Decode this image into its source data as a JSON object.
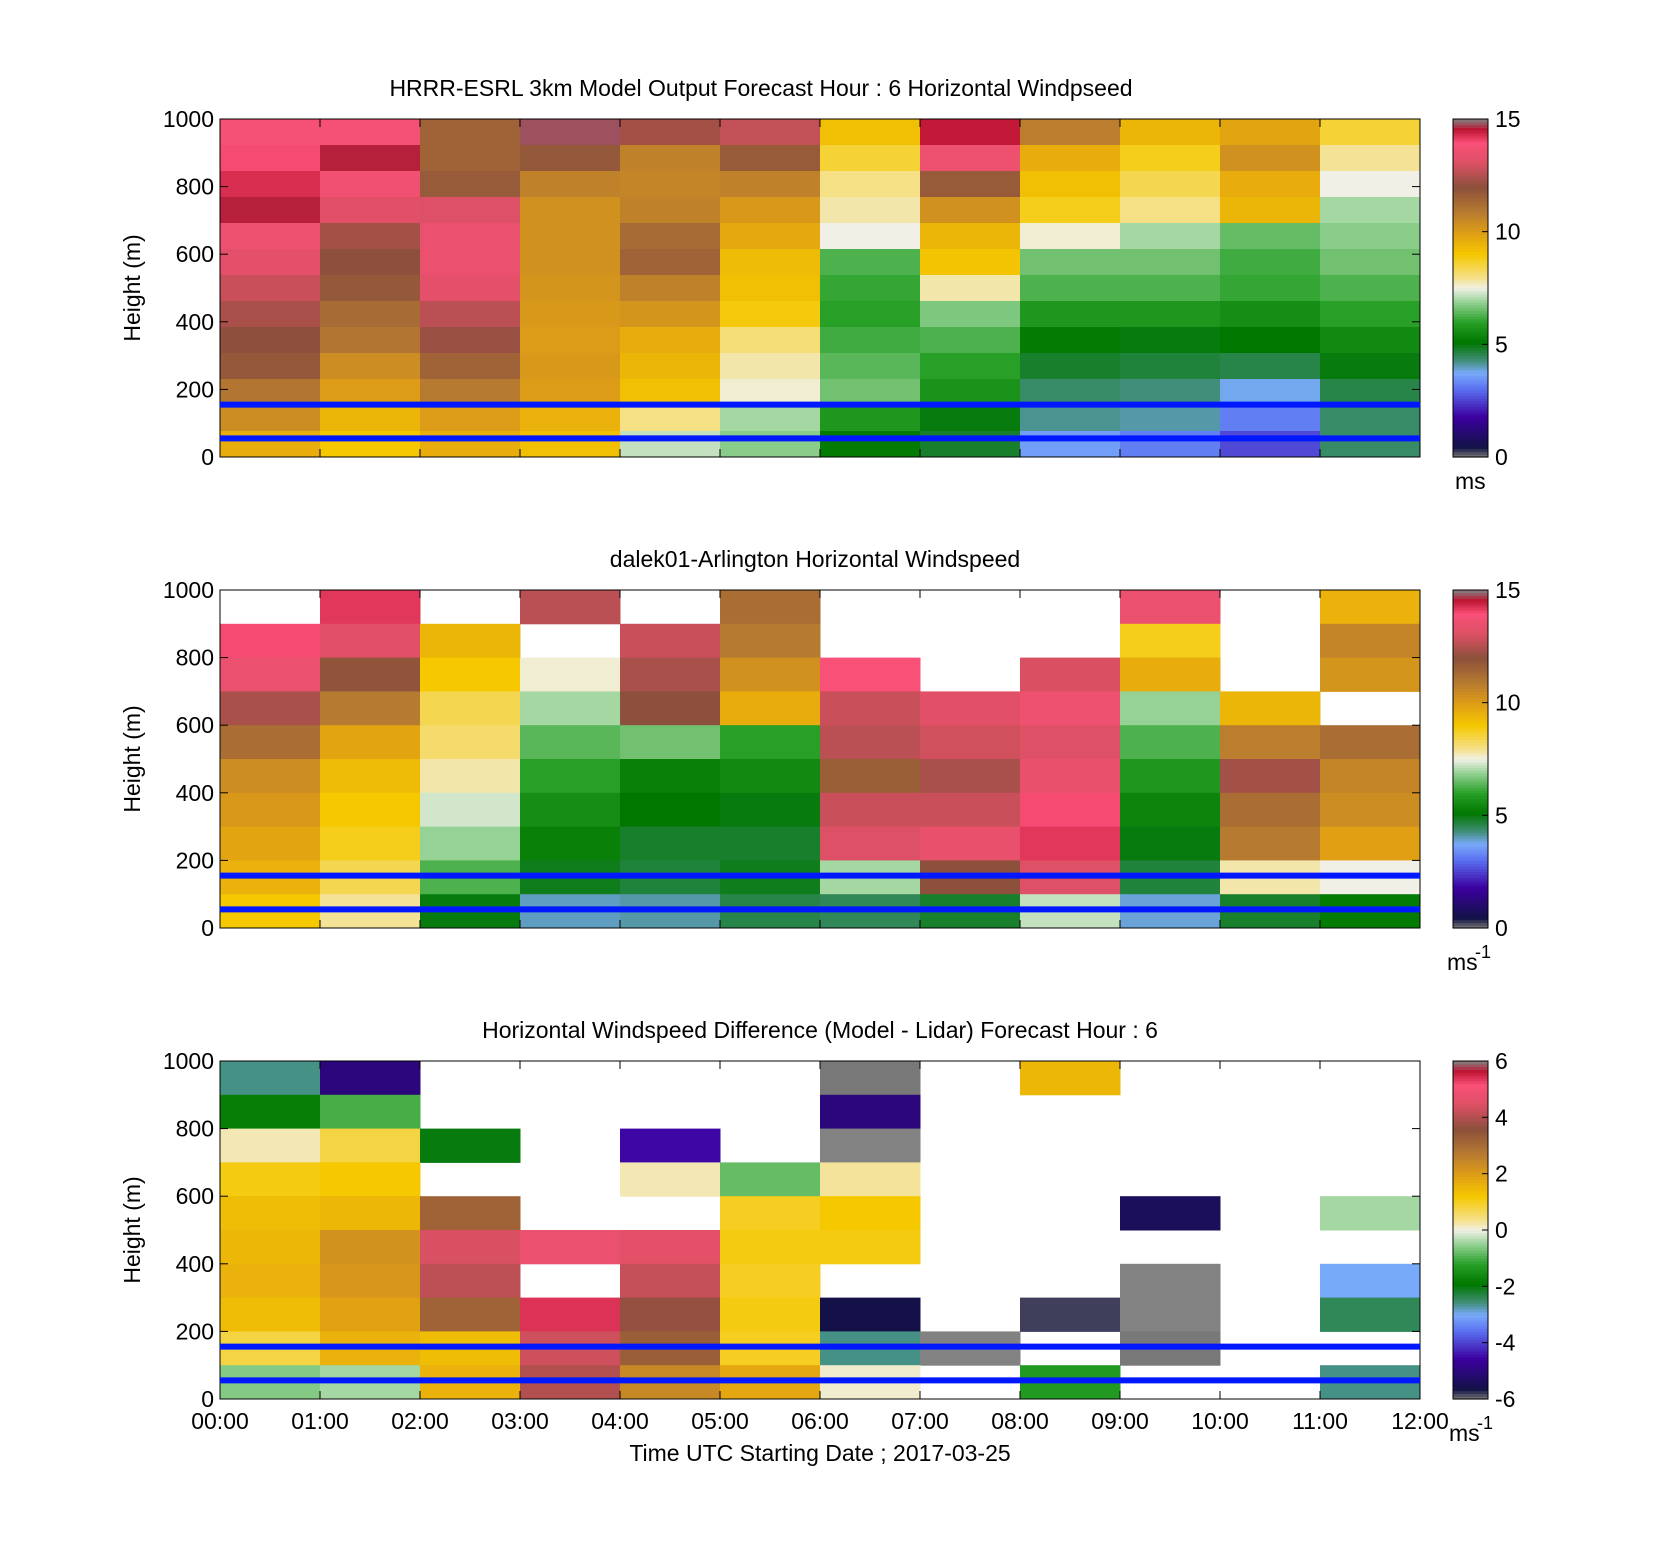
{
  "figure": {
    "xlabel": "Time UTC  Starting Date ; 2017-03-25",
    "x_tick_labels": [
      "00:00",
      "01:00",
      "02:00",
      "03:00",
      "04:00",
      "05:00",
      "06:00",
      "07:00",
      "08:00",
      "09:00",
      "10:00",
      "11:00",
      "12:00"
    ],
    "reference_lines_m": [
      155,
      55
    ],
    "reference_line_color": "#0018ff"
  },
  "chart_data": [
    {
      "type": "heatmap",
      "title": "HRRR-ESRL 3km Model Output   Forecast Hour : 6 Horizontal Windpseed",
      "ylabel": "Height (m)",
      "ylim": [
        0,
        1000
      ],
      "y_ticks": [
        "0",
        "200",
        "400",
        "600",
        "800",
        "1000"
      ],
      "xlim_hours": [
        0,
        12
      ],
      "colorbar": {
        "min": 0,
        "max": 15,
        "ticks": [
          "0",
          "5",
          "10",
          "15"
        ],
        "unit": "ms"
      },
      "cell_width_hours": 1,
      "cell_height_m": 33.3,
      "rows_top_to_bottom": [
        [
          13.8,
          13.8,
          11.5,
          14.8,
          12.3,
          12.7,
          9.2,
          14.5,
          10.8,
          9.4,
          9.8,
          8.6
        ],
        [
          14.0,
          14.6,
          11.5,
          11.8,
          10.7,
          11.7,
          8.6,
          13.6,
          9.6,
          8.8,
          10.3,
          7.9
        ],
        [
          14.3,
          13.7,
          11.7,
          10.7,
          10.6,
          10.7,
          8.0,
          11.7,
          9.2,
          8.4,
          9.6,
          7.5
        ],
        [
          14.6,
          13.2,
          13.1,
          10.3,
          10.7,
          10.1,
          7.8,
          10.3,
          8.8,
          8.0,
          9.4,
          7.0
        ],
        [
          13.6,
          12.3,
          13.5,
          10.3,
          11.3,
          9.7,
          7.5,
          9.4,
          7.6,
          7.0,
          6.5,
          6.8
        ],
        [
          13.3,
          12.0,
          13.5,
          10.3,
          11.5,
          9.3,
          6.3,
          9.1,
          6.6,
          6.6,
          6.2,
          6.6
        ],
        [
          12.8,
          11.8,
          13.3,
          10.2,
          10.7,
          9.2,
          6.1,
          7.8,
          6.3,
          6.3,
          6.1,
          6.3
        ],
        [
          12.4,
          11.3,
          12.6,
          10.1,
          10.2,
          8.9,
          6.0,
          6.7,
          5.8,
          5.8,
          5.6,
          6.0
        ],
        [
          12.0,
          11.0,
          12.2,
          10.0,
          9.6,
          8.1,
          6.2,
          6.3,
          5.2,
          5.0,
          5.1,
          5.5
        ],
        [
          11.8,
          10.4,
          11.5,
          10.1,
          9.4,
          7.8,
          6.4,
          6.0,
          4.8,
          4.7,
          4.6,
          5.0
        ],
        [
          11.0,
          10.0,
          10.9,
          10.0,
          9.2,
          7.6,
          6.6,
          5.7,
          4.4,
          4.3,
          3.8,
          4.6
        ],
        [
          10.4,
          9.4,
          10.0,
          9.5,
          8.0,
          7.0,
          5.8,
          5.0,
          4.2,
          4.1,
          3.2,
          4.4
        ],
        [
          9.6,
          9.0,
          9.6,
          9.2,
          7.2,
          6.8,
          5.2,
          4.8,
          3.6,
          3.2,
          2.6,
          4.4
        ]
      ]
    },
    {
      "type": "heatmap",
      "title": "dalek01-Arlington  Horizontal Windspeed",
      "ylabel": "Height (m)",
      "ylim": [
        0,
        1000
      ],
      "y_ticks": [
        "0",
        "200",
        "400",
        "600",
        "800",
        "1000"
      ],
      "xlim_hours": [
        0,
        12
      ],
      "colorbar": {
        "min": 0,
        "max": 15,
        "ticks": [
          "0",
          "5",
          "10",
          "15"
        ],
        "unit": "ms-1"
      },
      "note_missing": "white cells = no lidar data",
      "bands_top_to_bottom": [
        {
          "from_m": 1000,
          "to_m": 900,
          "values": [
            null,
            14.2,
            null,
            12.6,
            null,
            11.2,
            null,
            null,
            null,
            13.5,
            null,
            9.5
          ]
        },
        {
          "from_m": 900,
          "to_m": 800,
          "values": [
            14.0,
            13.2,
            9.4,
            null,
            12.8,
            10.9,
            null,
            null,
            null,
            8.8,
            null,
            10.6
          ]
        },
        {
          "from_m": 800,
          "to_m": 700,
          "values": [
            13.5,
            11.9,
            9.0,
            7.6,
            12.4,
            10.3,
            13.9,
            null,
            13.0,
            9.6,
            null,
            10.2
          ]
        },
        {
          "from_m": 700,
          "to_m": 600,
          "values": [
            12.4,
            10.9,
            8.4,
            7.0,
            12.0,
            9.6,
            12.8,
            13.2,
            13.6,
            6.9,
            9.4,
            null
          ]
        },
        {
          "from_m": 600,
          "to_m": 500,
          "values": [
            11.2,
            9.8,
            8.2,
            6.4,
            6.6,
            6.0,
            12.6,
            12.9,
            13.1,
            6.3,
            10.8,
            11.2
          ]
        },
        {
          "from_m": 500,
          "to_m": 400,
          "values": [
            10.4,
            9.3,
            7.8,
            6.0,
            5.3,
            5.5,
            11.6,
            12.4,
            13.4,
            5.8,
            12.3,
            10.6
          ]
        },
        {
          "from_m": 400,
          "to_m": 300,
          "values": [
            10.1,
            9.0,
            7.3,
            5.6,
            5.1,
            5.0,
            12.8,
            12.8,
            14.0,
            5.4,
            11.2,
            10.4
          ]
        },
        {
          "from_m": 300,
          "to_m": 200,
          "values": [
            9.8,
            8.8,
            6.9,
            5.3,
            4.8,
            4.8,
            13.1,
            13.4,
            14.2,
            5.0,
            10.9,
            9.9
          ]
        },
        {
          "from_m": 200,
          "to_m": 100,
          "values": [
            9.5,
            8.4,
            6.3,
            4.9,
            4.7,
            4.9,
            7.0,
            12.0,
            13.1,
            4.7,
            7.8,
            7.5
          ]
        },
        {
          "from_m": 100,
          "to_m": 0,
          "values": [
            9.0,
            7.9,
            5.0,
            4.0,
            4.1,
            4.6,
            4.5,
            4.8,
            7.2,
            3.9,
            4.8,
            5.2
          ]
        }
      ]
    },
    {
      "type": "heatmap",
      "title": "Horizontal Windspeed Difference (Model - Lidar) Forecast Hour : 6",
      "ylabel": "Height (m)",
      "ylim": [
        0,
        1000
      ],
      "y_ticks": [
        "0",
        "200",
        "400",
        "600",
        "800",
        "1000"
      ],
      "xlim_hours": [
        0,
        12
      ],
      "colorbar": {
        "min": -6,
        "max": 6,
        "ticks": [
          "-6",
          "-4",
          "-2",
          "0",
          "2",
          "4",
          "6"
        ],
        "unit": "ms-1"
      },
      "note_missing": "white cells = no difference available",
      "bands_top_to_bottom": [
        {
          "from_m": 1000,
          "to_m": 900,
          "values": [
            -2.6,
            -5.0,
            null,
            null,
            null,
            null,
            -6.2,
            null,
            1.5,
            null,
            null,
            null
          ]
        },
        {
          "from_m": 900,
          "to_m": 800,
          "values": [
            -1.8,
            -1.0,
            null,
            null,
            null,
            null,
            -5.0,
            null,
            null,
            null,
            null,
            null
          ]
        },
        {
          "from_m": 800,
          "to_m": 700,
          "values": [
            0.2,
            0.8,
            -2.0,
            null,
            -4.5,
            null,
            6.5,
            null,
            null,
            null,
            null,
            null
          ]
        },
        {
          "from_m": 700,
          "to_m": 600,
          "values": [
            1.1,
            1.2,
            null,
            null,
            0.2,
            -0.8,
            0.3,
            null,
            null,
            null,
            null,
            null
          ]
        },
        {
          "from_m": 600,
          "to_m": 500,
          "values": [
            1.4,
            1.5,
            3.2,
            null,
            null,
            1.0,
            1.2,
            null,
            null,
            -5.4,
            null,
            -0.4
          ]
        },
        {
          "from_m": 500,
          "to_m": 400,
          "values": [
            1.5,
            2.2,
            4.4,
            4.8,
            4.6,
            1.1,
            1.1,
            null,
            null,
            null,
            null,
            null
          ]
        },
        {
          "from_m": 400,
          "to_m": 300,
          "values": [
            1.6,
            2.1,
            4.1,
            null,
            4.2,
            1.0,
            null,
            null,
            null,
            6.5,
            null,
            -3.0
          ]
        },
        {
          "from_m": 300,
          "to_m": 200,
          "values": [
            1.4,
            1.9,
            3.2,
            5.4,
            3.7,
            1.1,
            -5.6,
            null,
            -5.8,
            6.5,
            null,
            -2.4
          ]
        },
        {
          "from_m": 200,
          "to_m": 100,
          "values": [
            0.8,
            1.6,
            1.4,
            4.3,
            3.3,
            1.0,
            -2.6,
            6.4,
            null,
            -6.2,
            null,
            null
          ]
        },
        {
          "from_m": 100,
          "to_m": 0,
          "values": [
            -0.6,
            -0.4,
            1.6,
            4.0,
            2.4,
            1.8,
            0.1,
            null,
            -1.3,
            null,
            null,
            -2.6
          ]
        }
      ]
    }
  ]
}
